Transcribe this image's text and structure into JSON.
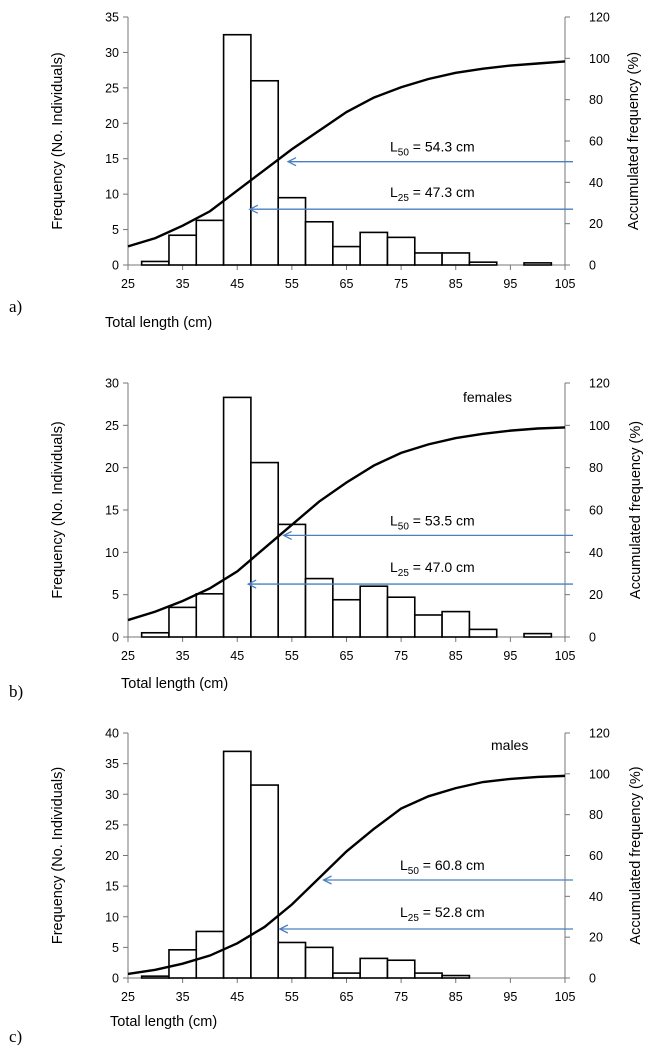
{
  "chart_data": [
    {
      "type": "bar",
      "panel_label": "a)",
      "title": "",
      "xlabel": "Total length (cm)",
      "ylabel": "Frequency (No. Individuals)",
      "y2label": "Accumulated frequency  (%)",
      "xlim": [
        25,
        105
      ],
      "ylim": [
        0,
        35
      ],
      "y2lim": [
        0,
        120
      ],
      "xticks": [
        "25",
        "35",
        "45",
        "55",
        "65",
        "75",
        "85",
        "95",
        "105"
      ],
      "yticks": [
        "0",
        "5",
        "10",
        "15",
        "20",
        "25",
        "30",
        "35"
      ],
      "y2ticks": [
        "0",
        "20",
        "40",
        "60",
        "80",
        "100",
        "120"
      ],
      "grid": false,
      "bars": [
        {
          "x": 30,
          "value": 0.5
        },
        {
          "x": 35,
          "value": 4.2
        },
        {
          "x": 40,
          "value": 6.3
        },
        {
          "x": 45,
          "value": 32.5
        },
        {
          "x": 50,
          "value": 26
        },
        {
          "x": 55,
          "value": 9.5
        },
        {
          "x": 60,
          "value": 6.1
        },
        {
          "x": 65,
          "value": 2.6
        },
        {
          "x": 70,
          "value": 4.6
        },
        {
          "x": 75,
          "value": 3.9
        },
        {
          "x": 80,
          "value": 1.7
        },
        {
          "x": 85,
          "value": 1.7
        },
        {
          "x": 90,
          "value": 0.4
        },
        {
          "x": 100,
          "value": 0.3
        }
      ],
      "curve": {
        "x": [
          25,
          30,
          35,
          40,
          45,
          50,
          55,
          60,
          65,
          70,
          75,
          80,
          85,
          90,
          95,
          100,
          105
        ],
        "y": [
          9,
          13,
          19,
          26,
          36,
          46,
          56,
          65,
          74,
          81,
          86,
          90,
          93,
          95,
          96.5,
          97.5,
          98.5
        ]
      },
      "annotations": [
        {
          "main": "L",
          "sub": "50",
          "rest": " = 54.3 cm",
          "x": 54.3,
          "y": 50
        },
        {
          "main": "L",
          "sub": "25",
          "rest": " = 47.3 cm",
          "x": 47.3,
          "y": 27
        }
      ]
    },
    {
      "type": "bar",
      "panel_label": "b)",
      "title": "females",
      "xlabel": "Total length (cm)",
      "ylabel": "Frequency (No. Individuals)",
      "y2label": "Accumulated frequency  (%)",
      "xlim": [
        25,
        105
      ],
      "ylim": [
        0,
        30
      ],
      "y2lim": [
        0,
        120
      ],
      "xticks": [
        "25",
        "35",
        "45",
        "55",
        "65",
        "75",
        "85",
        "95",
        "105"
      ],
      "yticks": [
        "0",
        "5",
        "10",
        "15",
        "20",
        "25",
        "30"
      ],
      "y2ticks": [
        "0",
        "20",
        "40",
        "60",
        "80",
        "100",
        "120"
      ],
      "grid": false,
      "bars": [
        {
          "x": 30,
          "value": 0.5
        },
        {
          "x": 35,
          "value": 3.5
        },
        {
          "x": 40,
          "value": 5.1
        },
        {
          "x": 45,
          "value": 28.3
        },
        {
          "x": 50,
          "value": 20.6
        },
        {
          "x": 55,
          "value": 13.3
        },
        {
          "x": 60,
          "value": 6.9
        },
        {
          "x": 65,
          "value": 4.4
        },
        {
          "x": 70,
          "value": 6.0
        },
        {
          "x": 75,
          "value": 4.7
        },
        {
          "x": 80,
          "value": 2.6
        },
        {
          "x": 85,
          "value": 3.0
        },
        {
          "x": 90,
          "value": 0.9
        },
        {
          "x": 100,
          "value": 0.4
        }
      ],
      "curve": {
        "x": [
          25,
          30,
          35,
          40,
          45,
          50,
          55,
          60,
          65,
          70,
          75,
          80,
          85,
          90,
          95,
          100,
          105
        ],
        "y": [
          8,
          12,
          17,
          23,
          31,
          42,
          53,
          64,
          73,
          81,
          87,
          91,
          94,
          96,
          97.5,
          98.5,
          99
        ]
      },
      "annotations": [
        {
          "main": "L",
          "sub": "50",
          "rest": " = 53.5 cm",
          "x": 53.5,
          "y": 48
        },
        {
          "main": "L",
          "sub": "25",
          "rest": " = 47.0 cm",
          "x": 47.0,
          "y": 25
        }
      ]
    },
    {
      "type": "bar",
      "panel_label": "c)",
      "title": "males",
      "xlabel": "Total length (cm)",
      "ylabel": "Frequency (No. Individuals)",
      "y2label": "Accumulated frequency  (%)",
      "xlim": [
        25,
        105
      ],
      "ylim": [
        0,
        40
      ],
      "y2lim": [
        0,
        120
      ],
      "xticks": [
        "25",
        "35",
        "45",
        "55",
        "65",
        "75",
        "85",
        "95",
        "105"
      ],
      "yticks": [
        "0",
        "5",
        "10",
        "15",
        "20",
        "25",
        "30",
        "35",
        "40"
      ],
      "y2ticks": [
        "0",
        "20",
        "40",
        "60",
        "80",
        "100",
        "120"
      ],
      "grid": false,
      "bars": [
        {
          "x": 30,
          "value": 0.3
        },
        {
          "x": 35,
          "value": 4.6
        },
        {
          "x": 40,
          "value": 7.6
        },
        {
          "x": 45,
          "value": 37
        },
        {
          "x": 50,
          "value": 31.5
        },
        {
          "x": 55,
          "value": 5.8
        },
        {
          "x": 60,
          "value": 5.0
        },
        {
          "x": 65,
          "value": 0.8
        },
        {
          "x": 70,
          "value": 3.2
        },
        {
          "x": 75,
          "value": 2.9
        },
        {
          "x": 80,
          "value": 0.8
        },
        {
          "x": 85,
          "value": 0.4
        }
      ],
      "curve": {
        "x": [
          25,
          30,
          35,
          40,
          45,
          50,
          55,
          60,
          65,
          70,
          75,
          80,
          85,
          90,
          95,
          100,
          105
        ],
        "y": [
          2,
          4,
          7,
          11,
          17,
          25,
          36,
          49,
          62,
          73,
          83,
          89,
          93,
          96,
          97.5,
          98.5,
          99
        ]
      },
      "annotations": [
        {
          "main": "L",
          "sub": "50",
          "rest": " = 60.8 cm",
          "x": 60.8,
          "y": 48
        },
        {
          "main": "L",
          "sub": "25",
          "rest": " = 52.8 cm",
          "x": 52.8,
          "y": 24
        }
      ]
    }
  ]
}
